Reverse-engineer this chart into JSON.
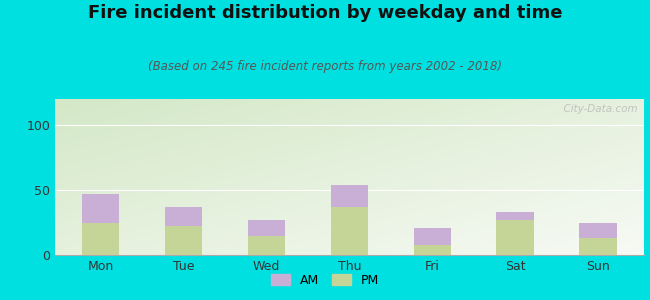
{
  "title": "Fire incident distribution by weekday and time",
  "subtitle": "(Based on 245 fire incident reports from years 2002 - 2018)",
  "categories": [
    "Mon",
    "Tue",
    "Wed",
    "Thu",
    "Fri",
    "Sat",
    "Sun"
  ],
  "pm_values": [
    25,
    22,
    15,
    37,
    8,
    27,
    13
  ],
  "am_values": [
    22,
    15,
    12,
    17,
    13,
    6,
    12
  ],
  "am_color": "#c9aed6",
  "pm_color": "#c5d497",
  "background_outer": "#00e0e0",
  "background_chart_topleft": "#d4e8c8",
  "background_chart_white": "#f8faf5",
  "ylim": [
    0,
    120
  ],
  "yticks": [
    0,
    50,
    100
  ],
  "bar_width": 0.45,
  "title_fontsize": 13,
  "subtitle_fontsize": 8.5,
  "tick_fontsize": 9,
  "legend_fontsize": 9,
  "watermark_text": "  City-Data.com"
}
